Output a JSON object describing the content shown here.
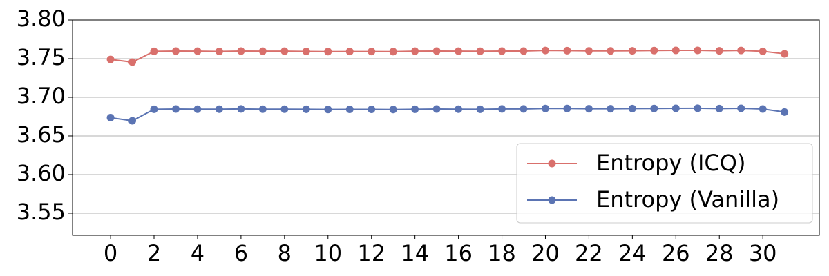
{
  "chart_data": {
    "type": "line",
    "x": [
      0,
      1,
      2,
      3,
      4,
      5,
      6,
      7,
      8,
      9,
      10,
      11,
      12,
      13,
      14,
      15,
      16,
      17,
      18,
      19,
      20,
      21,
      22,
      23,
      24,
      25,
      26,
      27,
      28,
      29,
      30,
      31
    ],
    "series": [
      {
        "name": "Entropy (ICQ)",
        "color": "#d9706c",
        "values": [
          3.749,
          3.7455,
          3.7595,
          3.7598,
          3.7597,
          3.7594,
          3.7598,
          3.7597,
          3.7597,
          3.7594,
          3.7592,
          3.7593,
          3.7593,
          3.7591,
          3.7597,
          3.7598,
          3.7597,
          3.7596,
          3.7598,
          3.7598,
          3.7606,
          3.7604,
          3.76,
          3.76,
          3.7602,
          3.7605,
          3.7607,
          3.7607,
          3.7602,
          3.7606,
          3.7595,
          3.7563
        ]
      },
      {
        "name": "Entropy (Vanilla)",
        "color": "#5b74b3",
        "values": [
          3.6736,
          3.6696,
          3.6845,
          3.6848,
          3.6846,
          3.6846,
          3.6849,
          3.6846,
          3.6846,
          3.6845,
          3.6842,
          3.6844,
          3.6844,
          3.6841,
          3.6845,
          3.6848,
          3.6846,
          3.6845,
          3.6849,
          3.6849,
          3.6855,
          3.6855,
          3.6851,
          3.6851,
          3.6854,
          3.6855,
          3.6857,
          3.6858,
          3.6854,
          3.6857,
          3.6848,
          3.6809
        ]
      }
    ],
    "xlim": [
      -1.75,
      32.6
    ],
    "xticks": [
      0,
      2,
      4,
      6,
      8,
      10,
      12,
      14,
      16,
      18,
      20,
      22,
      24,
      26,
      28,
      30
    ],
    "ylim": [
      3.5214,
      3.8
    ],
    "yticks": [
      3.55,
      {
        "value": 3.6,
        "label": "3.60"
      },
      3.65,
      {
        "value": 3.7,
        "label": "3.70"
      },
      3.75,
      {
        "value": 3.8,
        "label": "3.80"
      }
    ],
    "grid": true,
    "legend": "lower right"
  }
}
